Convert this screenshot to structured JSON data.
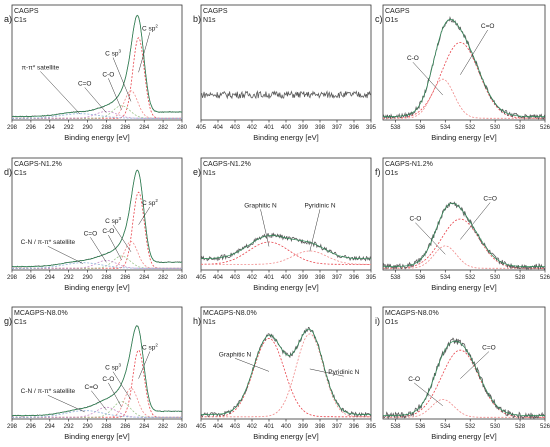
{
  "chart_data": [
    {
      "type": "line",
      "panel_label": "a)",
      "sample": "CAGPS",
      "core_level": "C1s",
      "xlabel": "Binding energy [eV]",
      "xlim": [
        298,
        280
      ],
      "xticks": [
        298,
        296,
        294,
        292,
        290,
        288,
        286,
        284,
        282,
        280
      ],
      "peaks": [
        {
          "component": "C sp2",
          "center": 284.6,
          "height": 0.7,
          "width": 0.6
        },
        {
          "component": "C sp3",
          "center": 285.4,
          "height": 0.24,
          "width": 0.7
        },
        {
          "component": "C-O",
          "center": 286.4,
          "height": 0.11,
          "width": 0.9
        },
        {
          "component": "C=O",
          "center": 288.0,
          "height": 0.06,
          "width": 1.1
        },
        {
          "component": "π-π* satellite",
          "center": 290.8,
          "height": 0.04,
          "width": 2.0
        }
      ],
      "annotations": [
        {
          "text": "C sp",
          "sup": "2",
          "peak": 0,
          "lx": 283.4,
          "ly": 0.78
        },
        {
          "text": "C sp",
          "sup": "3",
          "peak": 1,
          "lx": 287.3,
          "ly": 0.56
        },
        {
          "text": "C-O",
          "peak": 2,
          "lx": 287.8,
          "ly": 0.38
        },
        {
          "text": "C=O",
          "peak": 3,
          "lx": 290.3,
          "ly": 0.3
        },
        {
          "text": "π-π* satellite",
          "peak": 4,
          "lx": 295.0,
          "ly": 0.44
        }
      ]
    },
    {
      "type": "line",
      "panel_label": "b)",
      "sample": "CAGPS",
      "core_level": "N1s",
      "xlabel": "Binding energy [eV]",
      "xlim": [
        405,
        395
      ],
      "xticks": [
        405,
        404,
        403,
        402,
        401,
        400,
        399,
        398,
        397,
        396,
        395
      ],
      "peaks": [],
      "baseline": 0.22,
      "noise": 0.06,
      "annotations": []
    },
    {
      "type": "line",
      "panel_label": "c)",
      "sample": "CAGPS",
      "core_level": "O1s",
      "xlabel": "Binding energy [eV]",
      "xlim": [
        539,
        526
      ],
      "xticks": [
        538,
        536,
        534,
        532,
        530,
        528,
        526
      ],
      "peaks": [
        {
          "component": "C=O",
          "center": 532.8,
          "height": 0.66,
          "width": 1.5
        },
        {
          "component": "C-O",
          "center": 534.2,
          "height": 0.34,
          "width": 0.9
        }
      ],
      "noise": 0.04,
      "annotations": [
        {
          "text": "C=O",
          "peak": 0,
          "lx": 530.6,
          "ly": 0.8
        },
        {
          "text": "C-O",
          "peak": 1,
          "lx": 536.6,
          "ly": 0.52
        }
      ]
    },
    {
      "type": "line",
      "panel_label": "d)",
      "sample": "CAGPS-N1.2%",
      "core_level": "C1s",
      "xlabel": "Binding energy [eV]",
      "xlim": [
        298,
        280
      ],
      "xticks": [
        298,
        296,
        294,
        292,
        290,
        288,
        286,
        284,
        282,
        280
      ],
      "peaks": [
        {
          "component": "C sp2",
          "center": 284.6,
          "height": 0.68,
          "width": 0.6
        },
        {
          "component": "C sp3",
          "center": 285.4,
          "height": 0.24,
          "width": 0.7
        },
        {
          "component": "C-O",
          "center": 286.4,
          "height": 0.11,
          "width": 0.9
        },
        {
          "component": "C=O",
          "center": 288.0,
          "height": 0.07,
          "width": 1.1
        },
        {
          "component": "C-N / π-π* satellite",
          "center": 290.5,
          "height": 0.05,
          "width": 2.0
        }
      ],
      "annotations": [
        {
          "text": "C sp",
          "sup": "2",
          "peak": 0,
          "lx": 283.4,
          "ly": 0.58
        },
        {
          "text": "C sp",
          "sup": "3",
          "peak": 1,
          "lx": 287.3,
          "ly": 0.42
        },
        {
          "text": "C-O",
          "peak": 2,
          "lx": 287.8,
          "ly": 0.33
        },
        {
          "text": "C=O",
          "peak": 3,
          "lx": 289.7,
          "ly": 0.31
        },
        {
          "text": "C-N / π-π* satellite",
          "peak": 4,
          "lx": 294.2,
          "ly": 0.23
        }
      ]
    },
    {
      "type": "line",
      "panel_label": "e)",
      "sample": "CAGPS-N1.2%",
      "core_level": "N1s",
      "xlabel": "Binding energy [eV]",
      "xlim": [
        405,
        395
      ],
      "xticks": [
        405,
        404,
        403,
        402,
        401,
        400,
        399,
        398,
        397,
        396,
        395
      ],
      "peaks": [
        {
          "component": "Graphitic N",
          "center": 401.0,
          "height": 0.2,
          "width": 1.2
        },
        {
          "component": "Pyridinic N",
          "center": 398.6,
          "height": 0.12,
          "width": 1.0
        }
      ],
      "baseline": 0.1,
      "noise": 0.04,
      "annotations": [
        {
          "text": "Graphitic N",
          "peak": 0,
          "lx": 401.5,
          "ly": 0.56
        },
        {
          "text": "Pyridinic N",
          "peak": 1,
          "lx": 398.0,
          "ly": 0.56
        }
      ]
    },
    {
      "type": "line",
      "panel_label": "f)",
      "sample": "CAGPS-N1.2%",
      "core_level": "O1s",
      "xlabel": "Binding energy [eV]",
      "xlim": [
        539,
        526
      ],
      "xticks": [
        538,
        536,
        534,
        532,
        530,
        528,
        526
      ],
      "peaks": [
        {
          "component": "C=O",
          "center": 532.8,
          "height": 0.44,
          "width": 1.5
        },
        {
          "component": "C-O",
          "center": 534.0,
          "height": 0.2,
          "width": 0.9
        }
      ],
      "noise": 0.05,
      "annotations": [
        {
          "text": "C=O",
          "peak": 0,
          "lx": 530.4,
          "ly": 0.62
        },
        {
          "text": "C-O",
          "peak": 1,
          "lx": 536.4,
          "ly": 0.44
        }
      ]
    },
    {
      "type": "line",
      "panel_label": "g)",
      "sample": "MCAGPS-N8.0%",
      "core_level": "C1s",
      "xlabel": "Binding energy [eV]",
      "xlim": [
        298,
        280
      ],
      "xticks": [
        298,
        296,
        294,
        292,
        290,
        288,
        286,
        284,
        282,
        280
      ],
      "peaks": [
        {
          "component": "C sp2",
          "center": 284.6,
          "height": 0.6,
          "width": 0.6
        },
        {
          "component": "C sp3",
          "center": 285.4,
          "height": 0.26,
          "width": 0.7
        },
        {
          "component": "C-O",
          "center": 286.4,
          "height": 0.14,
          "width": 0.9
        },
        {
          "component": "C=O",
          "center": 288.0,
          "height": 0.09,
          "width": 1.1
        },
        {
          "component": "C-N / π-π* satellite",
          "center": 290.3,
          "height": 0.06,
          "width": 2.0
        }
      ],
      "annotations": [
        {
          "text": "C sp",
          "sup": "2",
          "peak": 0,
          "lx": 283.4,
          "ly": 0.62
        },
        {
          "text": "C sp",
          "sup": "3",
          "peak": 1,
          "lx": 287.3,
          "ly": 0.44
        },
        {
          "text": "C-O",
          "peak": 2,
          "lx": 287.8,
          "ly": 0.34
        },
        {
          "text": "C=O",
          "peak": 3,
          "lx": 289.6,
          "ly": 0.27
        },
        {
          "text": "C-N / π-π* satellite",
          "peak": 4,
          "lx": 294.2,
          "ly": 0.23
        }
      ]
    },
    {
      "type": "line",
      "panel_label": "h)",
      "sample": "MCAGPS-N8.0%",
      "core_level": "N1s",
      "xlabel": "Binding energy [eV]",
      "xlim": [
        405,
        395
      ],
      "xticks": [
        405,
        404,
        403,
        402,
        401,
        400,
        399,
        398,
        397,
        396,
        395
      ],
      "peaks": [
        {
          "component": "Graphitic N",
          "center": 401.0,
          "height": 0.7,
          "width": 0.9
        },
        {
          "component": "Pyridinic N",
          "center": 398.6,
          "height": 0.74,
          "width": 0.8
        }
      ],
      "baseline": 0.04,
      "noise": 0.04,
      "annotations": [
        {
          "text": "Graphitic N",
          "peak": 0,
          "lx": 403.0,
          "ly": 0.56
        },
        {
          "text": "Pyridinic N",
          "peak": 1,
          "lx": 396.6,
          "ly": 0.4
        }
      ]
    },
    {
      "type": "line",
      "panel_label": "i)",
      "sample": "MCAGPS-N8.0%",
      "core_level": "O1s",
      "xlabel": "Binding energy [eV]",
      "xlim": [
        539,
        526
      ],
      "xticks": [
        538,
        536,
        534,
        532,
        530,
        528,
        526
      ],
      "peaks": [
        {
          "component": "C=O",
          "center": 532.8,
          "height": 0.6,
          "width": 1.5
        },
        {
          "component": "C-O",
          "center": 534.2,
          "height": 0.16,
          "width": 0.9
        }
      ],
      "noise": 0.06,
      "annotations": [
        {
          "text": "C=O",
          "peak": 0,
          "lx": 530.5,
          "ly": 0.62
        },
        {
          "text": "C-O",
          "peak": 1,
          "lx": 536.5,
          "ly": 0.34
        }
      ]
    }
  ],
  "colors": {
    "measured": "#5a5a5a",
    "envelope": "#2e8b57",
    "main_component": "#e8434b",
    "minor_components": [
      "#f08a8a",
      "#9ec78f",
      "#c98fc9",
      "#8fb0d9",
      "#e0b070"
    ],
    "axis": "#333333"
  }
}
